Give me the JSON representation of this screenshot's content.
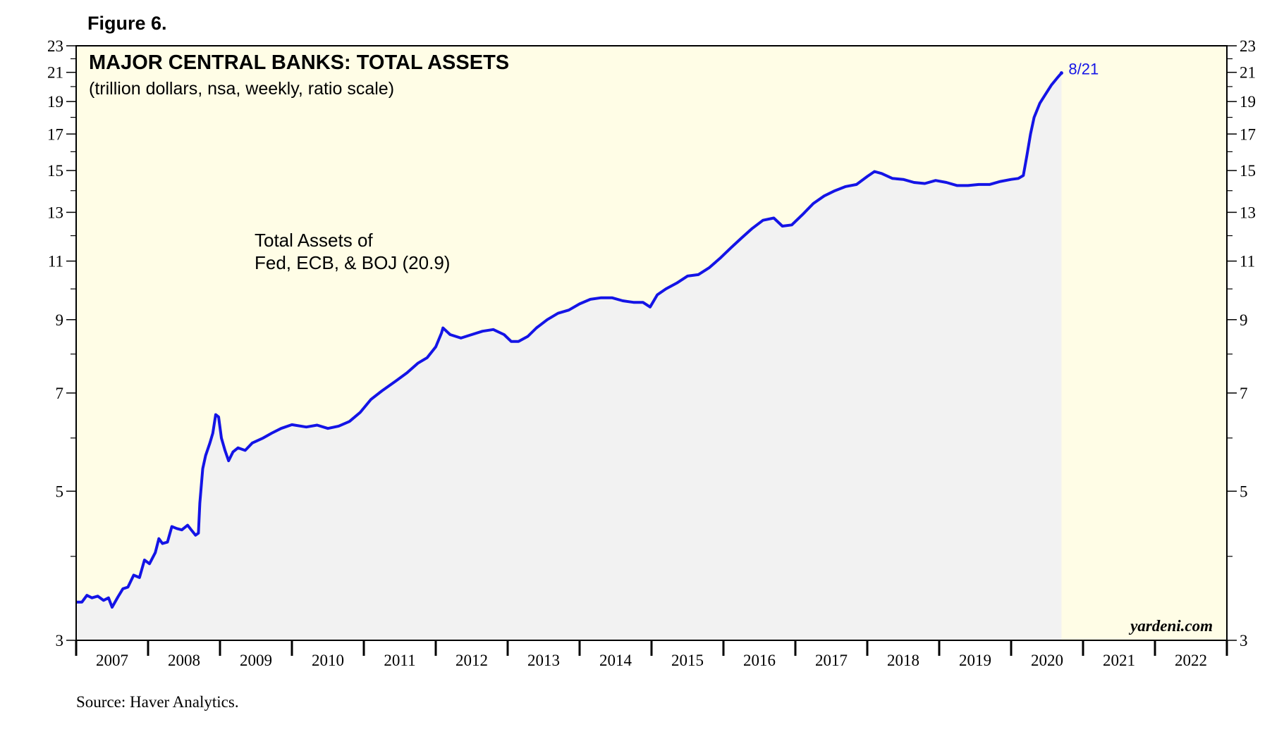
{
  "figure_label": "Figure 6.",
  "source": "Source: Haver Analytics.",
  "watermark": "yardeni.com",
  "chart_data": {
    "type": "area",
    "title": "MAJOR CENTRAL BANKS: TOTAL ASSETS",
    "subtitle": "(trillion dollars, nsa, weekly, ratio scale)",
    "y_scale": "log",
    "ylim": [
      3,
      23
    ],
    "xlim": [
      2007,
      2023
    ],
    "y_ticks": [
      3,
      5,
      7,
      9,
      11,
      13,
      15,
      17,
      19,
      21,
      23
    ],
    "y_minor_ticks": [
      4,
      6,
      8,
      10,
      12,
      14,
      16,
      18,
      20,
      22
    ],
    "x_tick_labels": [
      "2007",
      "2008",
      "2009",
      "2010",
      "2011",
      "2012",
      "2013",
      "2014",
      "2015",
      "2016",
      "2017",
      "2018",
      "2019",
      "2020",
      "2021",
      "2022"
    ],
    "grid": false,
    "series": [
      {
        "name": "Total Assets of Fed, ECB, & BOJ (20.9)",
        "label_line1": "Total Assets of",
        "label_line2": "Fed, ECB, & BOJ (20.9)",
        "color": "#1414e6",
        "fill": "#f2f2f2",
        "end_label": "8/21",
        "points": [
          [
            2007.0,
            3.42
          ],
          [
            2007.08,
            3.42
          ],
          [
            2007.15,
            3.5
          ],
          [
            2007.22,
            3.47
          ],
          [
            2007.3,
            3.49
          ],
          [
            2007.38,
            3.44
          ],
          [
            2007.45,
            3.47
          ],
          [
            2007.5,
            3.36
          ],
          [
            2007.58,
            3.48
          ],
          [
            2007.65,
            3.58
          ],
          [
            2007.72,
            3.6
          ],
          [
            2007.8,
            3.75
          ],
          [
            2007.88,
            3.72
          ],
          [
            2007.95,
            3.95
          ],
          [
            2008.02,
            3.9
          ],
          [
            2008.1,
            4.05
          ],
          [
            2008.15,
            4.25
          ],
          [
            2008.2,
            4.18
          ],
          [
            2008.27,
            4.2
          ],
          [
            2008.33,
            4.43
          ],
          [
            2008.4,
            4.4
          ],
          [
            2008.47,
            4.38
          ],
          [
            2008.55,
            4.45
          ],
          [
            2008.6,
            4.38
          ],
          [
            2008.66,
            4.3
          ],
          [
            2008.7,
            4.33
          ],
          [
            2008.72,
            4.8
          ],
          [
            2008.76,
            5.4
          ],
          [
            2008.8,
            5.65
          ],
          [
            2008.86,
            5.9
          ],
          [
            2008.9,
            6.1
          ],
          [
            2008.94,
            6.5
          ],
          [
            2008.98,
            6.45
          ],
          [
            2009.02,
            6.0
          ],
          [
            2009.07,
            5.75
          ],
          [
            2009.12,
            5.55
          ],
          [
            2009.18,
            5.72
          ],
          [
            2009.25,
            5.8
          ],
          [
            2009.35,
            5.75
          ],
          [
            2009.45,
            5.9
          ],
          [
            2009.6,
            6.0
          ],
          [
            2009.72,
            6.1
          ],
          [
            2009.85,
            6.2
          ],
          [
            2010.0,
            6.28
          ],
          [
            2010.2,
            6.23
          ],
          [
            2010.35,
            6.27
          ],
          [
            2010.5,
            6.2
          ],
          [
            2010.65,
            6.25
          ],
          [
            2010.8,
            6.35
          ],
          [
            2010.95,
            6.55
          ],
          [
            2011.1,
            6.85
          ],
          [
            2011.25,
            7.05
          ],
          [
            2011.45,
            7.3
          ],
          [
            2011.6,
            7.5
          ],
          [
            2011.75,
            7.75
          ],
          [
            2011.88,
            7.9
          ],
          [
            2012.0,
            8.2
          ],
          [
            2012.08,
            8.6
          ],
          [
            2012.1,
            8.75
          ],
          [
            2012.2,
            8.55
          ],
          [
            2012.35,
            8.45
          ],
          [
            2012.5,
            8.55
          ],
          [
            2012.65,
            8.65
          ],
          [
            2012.8,
            8.7
          ],
          [
            2012.95,
            8.55
          ],
          [
            2013.05,
            8.35
          ],
          [
            2013.15,
            8.35
          ],
          [
            2013.28,
            8.5
          ],
          [
            2013.4,
            8.75
          ],
          [
            2013.55,
            9.0
          ],
          [
            2013.7,
            9.2
          ],
          [
            2013.85,
            9.3
          ],
          [
            2014.0,
            9.5
          ],
          [
            2014.15,
            9.65
          ],
          [
            2014.3,
            9.7
          ],
          [
            2014.45,
            9.7
          ],
          [
            2014.6,
            9.6
          ],
          [
            2014.75,
            9.55
          ],
          [
            2014.88,
            9.55
          ],
          [
            2014.98,
            9.4
          ],
          [
            2015.08,
            9.8
          ],
          [
            2015.2,
            10.0
          ],
          [
            2015.35,
            10.2
          ],
          [
            2015.5,
            10.45
          ],
          [
            2015.65,
            10.5
          ],
          [
            2015.8,
            10.75
          ],
          [
            2015.95,
            11.1
          ],
          [
            2016.1,
            11.5
          ],
          [
            2016.25,
            11.9
          ],
          [
            2016.4,
            12.3
          ],
          [
            2016.55,
            12.65
          ],
          [
            2016.7,
            12.75
          ],
          [
            2016.82,
            12.4
          ],
          [
            2016.95,
            12.45
          ],
          [
            2017.1,
            12.9
          ],
          [
            2017.25,
            13.4
          ],
          [
            2017.4,
            13.75
          ],
          [
            2017.55,
            14.0
          ],
          [
            2017.7,
            14.2
          ],
          [
            2017.85,
            14.3
          ],
          [
            2018.0,
            14.7
          ],
          [
            2018.1,
            14.95
          ],
          [
            2018.2,
            14.85
          ],
          [
            2018.35,
            14.6
          ],
          [
            2018.5,
            14.55
          ],
          [
            2018.65,
            14.4
          ],
          [
            2018.8,
            14.35
          ],
          [
            2018.95,
            14.5
          ],
          [
            2019.1,
            14.4
          ],
          [
            2019.25,
            14.25
          ],
          [
            2019.4,
            14.25
          ],
          [
            2019.55,
            14.3
          ],
          [
            2019.7,
            14.3
          ],
          [
            2019.85,
            14.45
          ],
          [
            2020.0,
            14.55
          ],
          [
            2020.1,
            14.6
          ],
          [
            2020.17,
            14.75
          ],
          [
            2020.22,
            15.8
          ],
          [
            2020.27,
            17.0
          ],
          [
            2020.32,
            18.0
          ],
          [
            2020.4,
            18.9
          ],
          [
            2020.48,
            19.5
          ],
          [
            2020.56,
            20.1
          ],
          [
            2020.64,
            20.6
          ],
          [
            2020.7,
            20.95
          ]
        ]
      }
    ]
  }
}
